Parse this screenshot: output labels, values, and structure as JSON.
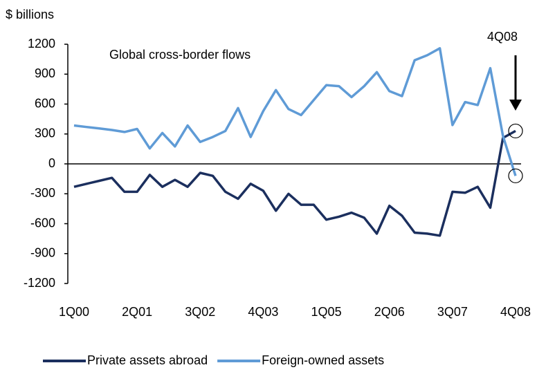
{
  "chart_data": {
    "type": "line",
    "title": "Global cross-border flows",
    "y_axis_label": "$ billions",
    "annotation": "4Q08",
    "categories": [
      "1Q00",
      null,
      null,
      null,
      null,
      "2Q01",
      null,
      null,
      null,
      null,
      "3Q02",
      null,
      null,
      null,
      null,
      "4Q03",
      null,
      null,
      null,
      null,
      "1Q05",
      null,
      null,
      null,
      null,
      "2Q06",
      null,
      null,
      null,
      null,
      "3Q07",
      null,
      null,
      null,
      null,
      "4Q08"
    ],
    "series": [
      {
        "name": "Private assets abroad",
        "color": "#1b2f5e",
        "values": [
          -230,
          -200,
          -170,
          -140,
          -280,
          -280,
          -110,
          -230,
          -160,
          -230,
          -90,
          -120,
          -280,
          -350,
          -200,
          -270,
          -470,
          -300,
          -410,
          -410,
          -560,
          -530,
          -490,
          -540,
          -700,
          -420,
          -520,
          -690,
          -700,
          -720,
          -280,
          -290,
          -230,
          -440,
          260,
          330
        ]
      },
      {
        "name": "Foreign-owned assets",
        "color": "#5f9bd6",
        "values": [
          385,
          370,
          355,
          340,
          320,
          350,
          155,
          310,
          175,
          385,
          220,
          270,
          330,
          560,
          270,
          530,
          740,
          550,
          490,
          640,
          790,
          780,
          670,
          780,
          920,
          730,
          680,
          1040,
          1090,
          1160,
          390,
          620,
          590,
          960,
          280,
          -120
        ]
      }
    ],
    "ylim": [
      -1200,
      1200
    ],
    "yticks": [
      -1200,
      -900,
      -600,
      -300,
      0,
      300,
      600,
      900,
      1200
    ],
    "legend": "bottom"
  }
}
